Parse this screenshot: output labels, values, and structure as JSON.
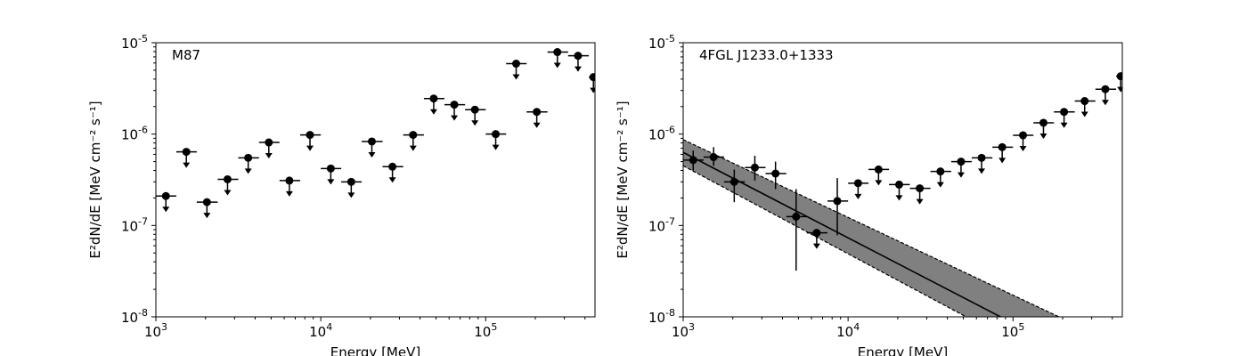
{
  "chart_data": [
    {
      "type": "scatter",
      "annotation": "M87",
      "xlabel": "Energy [MeV]",
      "ylabel": "E²dN/dE [MeV cm⁻² s⁻¹]",
      "xscale": "log",
      "yscale": "log",
      "xlim": [
        1000,
        460000
      ],
      "ylim": [
        1e-08,
        1e-05
      ],
      "x_ticks": [
        1000,
        10000,
        100000
      ],
      "y_ticks": [
        1e-08,
        1e-07,
        1e-06,
        1e-05
      ],
      "points": [
        {
          "x": 1150,
          "xlo": 1000,
          "xhi": 1330,
          "y": 2.1e-07,
          "upper_limit": true
        },
        {
          "x": 1530,
          "xlo": 1330,
          "xhi": 1770,
          "y": 6.4e-07,
          "upper_limit": true
        },
        {
          "x": 2040,
          "xlo": 1770,
          "xhi": 2370,
          "y": 1.8e-07,
          "upper_limit": true
        },
        {
          "x": 2720,
          "xlo": 2370,
          "xhi": 3160,
          "y": 3.2e-07,
          "upper_limit": true
        },
        {
          "x": 3630,
          "xlo": 3160,
          "xhi": 4220,
          "y": 5.5e-07,
          "upper_limit": true
        },
        {
          "x": 4840,
          "xlo": 4220,
          "xhi": 5620,
          "y": 8.1e-07,
          "upper_limit": true
        },
        {
          "x": 6450,
          "xlo": 5620,
          "xhi": 7500,
          "y": 3.1e-07,
          "upper_limit": true
        },
        {
          "x": 8600,
          "xlo": 7500,
          "xhi": 10000,
          "y": 9.8e-07,
          "upper_limit": true
        },
        {
          "x": 11500,
          "xlo": 10000,
          "xhi": 13300,
          "y": 4.2e-07,
          "upper_limit": true
        },
        {
          "x": 15300,
          "xlo": 13300,
          "xhi": 17700,
          "y": 3e-07,
          "upper_limit": true
        },
        {
          "x": 20400,
          "xlo": 17700,
          "xhi": 23700,
          "y": 8.3e-07,
          "upper_limit": true
        },
        {
          "x": 27200,
          "xlo": 23700,
          "xhi": 31600,
          "y": 4.4e-07,
          "upper_limit": true
        },
        {
          "x": 36300,
          "xlo": 31600,
          "xhi": 42200,
          "y": 9.8e-07,
          "upper_limit": true
        },
        {
          "x": 48400,
          "xlo": 42200,
          "xhi": 56200,
          "y": 2.45e-06,
          "upper_limit": true
        },
        {
          "x": 64500,
          "xlo": 56200,
          "xhi": 75000,
          "y": 2.1e-06,
          "upper_limit": true
        },
        {
          "x": 86000,
          "xlo": 75000,
          "xhi": 100000,
          "y": 1.85e-06,
          "upper_limit": true
        },
        {
          "x": 115000,
          "xlo": 100000,
          "xhi": 133000,
          "y": 1e-06,
          "upper_limit": true
        },
        {
          "x": 153000,
          "xlo": 133000,
          "xhi": 177000,
          "y": 5.9e-06,
          "upper_limit": true
        },
        {
          "x": 204000,
          "xlo": 177000,
          "xhi": 237000,
          "y": 1.75e-06,
          "upper_limit": true
        },
        {
          "x": 272000,
          "xlo": 237000,
          "xhi": 316000,
          "y": 7.9e-06,
          "upper_limit": true
        },
        {
          "x": 363000,
          "xlo": 316000,
          "xhi": 422000,
          "y": 7.2e-06,
          "upper_limit": true
        },
        {
          "x": 450000,
          "xlo": 422000,
          "xhi": 460000,
          "y": 4.2e-06,
          "upper_limit": true
        }
      ]
    },
    {
      "type": "scatter",
      "annotation": "4FGL J1233.0+1333",
      "xlabel": "Energy [MeV]",
      "ylabel": "E²dN/dE [MeV cm⁻² s⁻¹]",
      "xscale": "log",
      "yscale": "log",
      "xlim": [
        1000,
        460000
      ],
      "ylim": [
        1e-08,
        1e-05
      ],
      "x_ticks": [
        1000,
        10000,
        100000
      ],
      "y_ticks": [
        1e-08,
        1e-07,
        1e-06,
        1e-05
      ],
      "points": [
        {
          "x": 1150,
          "xlo": 1000,
          "xhi": 1330,
          "y": 5.2e-07,
          "ylo": 4e-07,
          "yhi": 6.6e-07,
          "upper_limit": false
        },
        {
          "x": 1530,
          "xlo": 1330,
          "xhi": 1770,
          "y": 5.6e-07,
          "ylo": 4.5e-07,
          "yhi": 7.2e-07,
          "upper_limit": false
        },
        {
          "x": 2040,
          "xlo": 1770,
          "xhi": 2370,
          "y": 3e-07,
          "ylo": 1.8e-07,
          "yhi": 4.1e-07,
          "upper_limit": false
        },
        {
          "x": 2720,
          "xlo": 2370,
          "xhi": 3160,
          "y": 4.3e-07,
          "ylo": 3.1e-07,
          "yhi": 5.8e-07,
          "upper_limit": false
        },
        {
          "x": 3630,
          "xlo": 3160,
          "xhi": 4220,
          "y": 3.7e-07,
          "ylo": 2.5e-07,
          "yhi": 5e-07,
          "upper_limit": false
        },
        {
          "x": 4840,
          "xlo": 4220,
          "xhi": 5620,
          "y": 1.25e-07,
          "ylo": 3.2e-08,
          "yhi": 2.5e-07,
          "upper_limit": false
        },
        {
          "x": 6450,
          "xlo": 5620,
          "xhi": 7500,
          "y": 8.3e-08,
          "upper_limit": true
        },
        {
          "x": 8600,
          "xlo": 7500,
          "xhi": 10000,
          "y": 1.85e-07,
          "ylo": 7.8e-08,
          "yhi": 3.3e-07,
          "upper_limit": false
        },
        {
          "x": 11500,
          "xlo": 10000,
          "xhi": 13300,
          "y": 2.9e-07,
          "upper_limit": true
        },
        {
          "x": 15300,
          "xlo": 13300,
          "xhi": 17700,
          "y": 4.1e-07,
          "upper_limit": true
        },
        {
          "x": 20400,
          "xlo": 17700,
          "xhi": 23700,
          "y": 2.8e-07,
          "upper_limit": true
        },
        {
          "x": 27200,
          "xlo": 23700,
          "xhi": 31600,
          "y": 2.55e-07,
          "upper_limit": true
        },
        {
          "x": 36300,
          "xlo": 31600,
          "xhi": 42200,
          "y": 3.9e-07,
          "upper_limit": true
        },
        {
          "x": 48400,
          "xlo": 42200,
          "xhi": 56200,
          "y": 5e-07,
          "upper_limit": true
        },
        {
          "x": 64500,
          "xlo": 56200,
          "xhi": 75000,
          "y": 5.5e-07,
          "upper_limit": true
        },
        {
          "x": 86000,
          "xlo": 75000,
          "xhi": 100000,
          "y": 7.2e-07,
          "upper_limit": true
        },
        {
          "x": 115000,
          "xlo": 100000,
          "xhi": 133000,
          "y": 9.7e-07,
          "upper_limit": true
        },
        {
          "x": 153000,
          "xlo": 133000,
          "xhi": 177000,
          "y": 1.33e-06,
          "upper_limit": true
        },
        {
          "x": 204000,
          "xlo": 177000,
          "xhi": 237000,
          "y": 1.75e-06,
          "upper_limit": true
        },
        {
          "x": 272000,
          "xlo": 237000,
          "xhi": 316000,
          "y": 2.3e-06,
          "upper_limit": true
        },
        {
          "x": 363000,
          "xlo": 316000,
          "xhi": 422000,
          "y": 3.1e-06,
          "upper_limit": true
        },
        {
          "x": 450000,
          "xlo": 422000,
          "xhi": 460000,
          "y": 4.3e-06,
          "upper_limit": true
        }
      ],
      "model": {
        "line": [
          [
            1000,
            6.3e-07
          ],
          [
            100000,
            8.5e-09
          ]
        ],
        "band_upper": [
          [
            1000,
            8.7e-07
          ],
          [
            190000,
            1e-08
          ]
        ],
        "band_lower": [
          [
            1000,
            4.5e-07
          ],
          [
            52000,
            1e-08
          ]
        ],
        "band_color": "#808080"
      }
    }
  ]
}
